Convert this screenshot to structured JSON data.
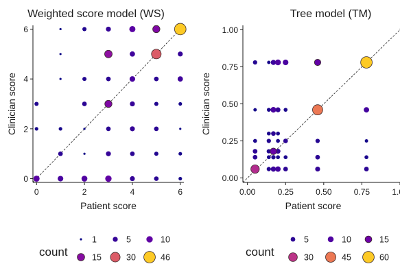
{
  "colors": {
    "scale": [
      "#0d0887",
      "#46039f",
      "#7201a8",
      "#9c179e",
      "#bd3786",
      "#d8576b",
      "#ed7953",
      "#fb9f3a",
      "#fdca26",
      "#f0f921"
    ]
  },
  "chart_data": [
    {
      "type": "scatter",
      "title": "Weighted score model (WS)",
      "xlabel": "Patient score",
      "ylabel": "Clinician score",
      "xlim": [
        -0.15,
        6.15
      ],
      "ylim": [
        -0.15,
        6.15
      ],
      "xticks": [
        0,
        2,
        4,
        6
      ],
      "yticks": [
        0,
        2,
        4,
        6
      ],
      "xtick_labels": [
        "0",
        "2",
        "4",
        "6"
      ],
      "ytick_labels": [
        "0",
        "2",
        "4",
        "6"
      ],
      "reference_line": "y = x (dashed)",
      "size_by": "count",
      "color_by": "count",
      "count_range": [
        1,
        46
      ],
      "legend": {
        "title": "count",
        "entries": [
          {
            "label": "1",
            "value": 1
          },
          {
            "label": "5",
            "value": 5
          },
          {
            "label": "10",
            "value": 10
          },
          {
            "label": "15",
            "value": 15
          },
          {
            "label": "30",
            "value": 30
          },
          {
            "label": "46",
            "value": 46
          }
        ]
      },
      "points": [
        {
          "x": 0,
          "y": 0,
          "count": 9
        },
        {
          "x": 1,
          "y": 0,
          "count": 7
        },
        {
          "x": 2,
          "y": 0,
          "count": 8
        },
        {
          "x": 3,
          "y": 0,
          "count": 10
        },
        {
          "x": 4,
          "y": 0,
          "count": 5
        },
        {
          "x": 5,
          "y": 0,
          "count": 4
        },
        {
          "x": 6,
          "y": 0,
          "count": 2
        },
        {
          "x": 1,
          "y": 1,
          "count": 4
        },
        {
          "x": 2,
          "y": 1,
          "count": 1
        },
        {
          "x": 3,
          "y": 1,
          "count": 5
        },
        {
          "x": 4,
          "y": 1,
          "count": 4
        },
        {
          "x": 5,
          "y": 1,
          "count": 3
        },
        {
          "x": 6,
          "y": 1,
          "count": 2
        },
        {
          "x": 0,
          "y": 2,
          "count": 2
        },
        {
          "x": 1,
          "y": 2,
          "count": 2
        },
        {
          "x": 2,
          "y": 2,
          "count": 1
        },
        {
          "x": 3,
          "y": 2,
          "count": 4
        },
        {
          "x": 4,
          "y": 2,
          "count": 5
        },
        {
          "x": 5,
          "y": 2,
          "count": 4
        },
        {
          "x": 6,
          "y": 2,
          "count": 1
        },
        {
          "x": 0,
          "y": 3,
          "count": 3
        },
        {
          "x": 2,
          "y": 3,
          "count": 4
        },
        {
          "x": 3,
          "y": 3,
          "count": 14
        },
        {
          "x": 4,
          "y": 3,
          "count": 5
        },
        {
          "x": 5,
          "y": 3,
          "count": 3
        },
        {
          "x": 6,
          "y": 3,
          "count": 2
        },
        {
          "x": 1,
          "y": 4,
          "count": 1
        },
        {
          "x": 2,
          "y": 4,
          "count": 3
        },
        {
          "x": 3,
          "y": 4,
          "count": 4
        },
        {
          "x": 4,
          "y": 4,
          "count": 7
        },
        {
          "x": 5,
          "y": 4,
          "count": 4
        },
        {
          "x": 6,
          "y": 4,
          "count": 6
        },
        {
          "x": 1,
          "y": 5,
          "count": 1
        },
        {
          "x": 3,
          "y": 5,
          "count": 16
        },
        {
          "x": 4,
          "y": 5,
          "count": 6
        },
        {
          "x": 5,
          "y": 5,
          "count": 30
        },
        {
          "x": 6,
          "y": 5,
          "count": 5
        },
        {
          "x": 1,
          "y": 6,
          "count": 1
        },
        {
          "x": 2,
          "y": 6,
          "count": 3
        },
        {
          "x": 3,
          "y": 6,
          "count": 5
        },
        {
          "x": 4,
          "y": 6,
          "count": 9
        },
        {
          "x": 5,
          "y": 6,
          "count": 14
        },
        {
          "x": 6,
          "y": 6,
          "count": 46
        }
      ]
    },
    {
      "type": "scatter",
      "title": "Tree model (TM)",
      "xlabel": "Patient score",
      "ylabel": "Clinician score",
      "xlim": [
        -0.03,
        1.0
      ],
      "ylim": [
        -0.03,
        1.03
      ],
      "xticks": [
        0,
        0.25,
        0.5,
        0.75,
        1.0
      ],
      "yticks": [
        0,
        0.25,
        0.5,
        0.75,
        1.0
      ],
      "xtick_labels": [
        "0.00",
        "0.25",
        "0.50",
        "0.75",
        "1.00"
      ],
      "ytick_labels": [
        "0.00",
        "0.25",
        "0.50",
        "0.75",
        "1.00"
      ],
      "reference_line": "y = x (dashed)",
      "size_by": "count",
      "color_by": "count",
      "count_range": [
        1,
        60
      ],
      "legend": {
        "title": "count",
        "entries": [
          {
            "label": "5",
            "value": 5
          },
          {
            "label": "10",
            "value": 10
          },
          {
            "label": "15",
            "value": 15
          },
          {
            "label": "30",
            "value": 30
          },
          {
            "label": "45",
            "value": 45
          },
          {
            "label": "60",
            "value": 60
          }
        ]
      },
      "points": [
        {
          "x": 0.05,
          "y": 0.78,
          "count": 4
        },
        {
          "x": 0.14,
          "y": 0.78,
          "count": 2
        },
        {
          "x": 0.17,
          "y": 0.78,
          "count": 7
        },
        {
          "x": 0.2,
          "y": 0.78,
          "count": 10
        },
        {
          "x": 0.25,
          "y": 0.78,
          "count": 9
        },
        {
          "x": 0.46,
          "y": 0.78,
          "count": 13
        },
        {
          "x": 0.78,
          "y": 0.78,
          "count": 60
        },
        {
          "x": 0.05,
          "y": 0.46,
          "count": 2
        },
        {
          "x": 0.14,
          "y": 0.46,
          "count": 3
        },
        {
          "x": 0.17,
          "y": 0.46,
          "count": 9
        },
        {
          "x": 0.2,
          "y": 0.46,
          "count": 6
        },
        {
          "x": 0.25,
          "y": 0.46,
          "count": 3
        },
        {
          "x": 0.46,
          "y": 0.46,
          "count": 45
        },
        {
          "x": 0.78,
          "y": 0.46,
          "count": 8
        },
        {
          "x": 0.14,
          "y": 0.3,
          "count": 3
        },
        {
          "x": 0.17,
          "y": 0.3,
          "count": 5
        },
        {
          "x": 0.2,
          "y": 0.3,
          "count": 3
        },
        {
          "x": 0.05,
          "y": 0.25,
          "count": 3
        },
        {
          "x": 0.14,
          "y": 0.25,
          "count": 4
        },
        {
          "x": 0.2,
          "y": 0.25,
          "count": 3
        },
        {
          "x": 0.25,
          "y": 0.25,
          "count": 5
        },
        {
          "x": 0.46,
          "y": 0.25,
          "count": 4
        },
        {
          "x": 0.78,
          "y": 0.25,
          "count": 2
        },
        {
          "x": 0.05,
          "y": 0.18,
          "count": 5
        },
        {
          "x": 0.14,
          "y": 0.18,
          "count": 4
        },
        {
          "x": 0.17,
          "y": 0.18,
          "count": 14
        },
        {
          "x": 0.2,
          "y": 0.18,
          "count": 6
        },
        {
          "x": 0.05,
          "y": 0.14,
          "count": 5
        },
        {
          "x": 0.14,
          "y": 0.14,
          "count": 3
        },
        {
          "x": 0.17,
          "y": 0.14,
          "count": 4
        },
        {
          "x": 0.2,
          "y": 0.14,
          "count": 3
        },
        {
          "x": 0.25,
          "y": 0.14,
          "count": 3
        },
        {
          "x": 0.46,
          "y": 0.14,
          "count": 5
        },
        {
          "x": 0.78,
          "y": 0.14,
          "count": 3
        },
        {
          "x": 0.05,
          "y": 0.06,
          "count": 28
        },
        {
          "x": 0.14,
          "y": 0.06,
          "count": 4
        },
        {
          "x": 0.17,
          "y": 0.06,
          "count": 7
        },
        {
          "x": 0.2,
          "y": 0.06,
          "count": 8
        },
        {
          "x": 0.25,
          "y": 0.06,
          "count": 5
        },
        {
          "x": 0.46,
          "y": 0.06,
          "count": 6
        },
        {
          "x": 0.78,
          "y": 0.06,
          "count": 5
        }
      ]
    }
  ]
}
